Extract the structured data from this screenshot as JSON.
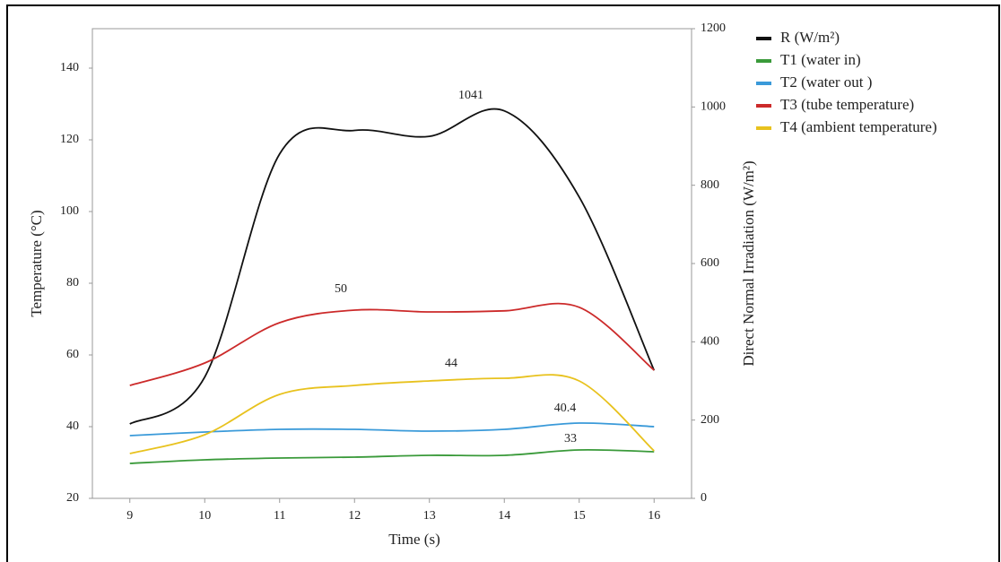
{
  "chart_data": {
    "type": "line",
    "x_label": "Time (s)",
    "y_label": "Temperature (°C)",
    "y2_label": "Direct Normal Irradiation (W/m²)",
    "x": [
      9,
      10,
      11,
      12,
      13,
      14,
      15,
      16
    ],
    "xlim": [
      8.5,
      16.5
    ],
    "xticks": [
      9,
      10,
      11,
      12,
      13,
      14,
      15,
      16
    ],
    "ylim": [
      20,
      151
    ],
    "yticks": [
      20,
      40,
      60,
      80,
      100,
      120,
      140
    ],
    "y2lim": [
      0,
      1200
    ],
    "y2ticks": [
      0,
      200,
      400,
      600,
      800,
      1000,
      1200
    ],
    "series": [
      {
        "name": "R  (W/m²)",
        "color": "#111111",
        "axis": "y2",
        "values": [
          190,
          310,
          880,
          940,
          925,
          990,
          770,
          327
        ]
      },
      {
        "name": "T1 (water in)",
        "color": "#3a9a3a",
        "values": [
          29.75,
          30.75,
          31.25,
          31.5,
          32,
          32,
          33.5,
          33
        ]
      },
      {
        "name": "T2 (water out )",
        "color": "#3a9ad9",
        "values": [
          37.5,
          38.5,
          39.25,
          39.25,
          38.75,
          39.25,
          41,
          40
        ]
      },
      {
        "name": "T3 (tube temperature)",
        "color": "#cc2a2a",
        "values": [
          51.5,
          57.75,
          69,
          72.5,
          72,
          72.3,
          73.3,
          55.75
        ]
      },
      {
        "name": "T4 (ambient temperature)",
        "color": "#e8c21e",
        "values": [
          32.5,
          37.75,
          49,
          51.5,
          52.75,
          53.5,
          52.75,
          33.25
        ]
      }
    ],
    "annotations": [
      "1041",
      "50",
      "44",
      "40.4",
      "33"
    ]
  }
}
